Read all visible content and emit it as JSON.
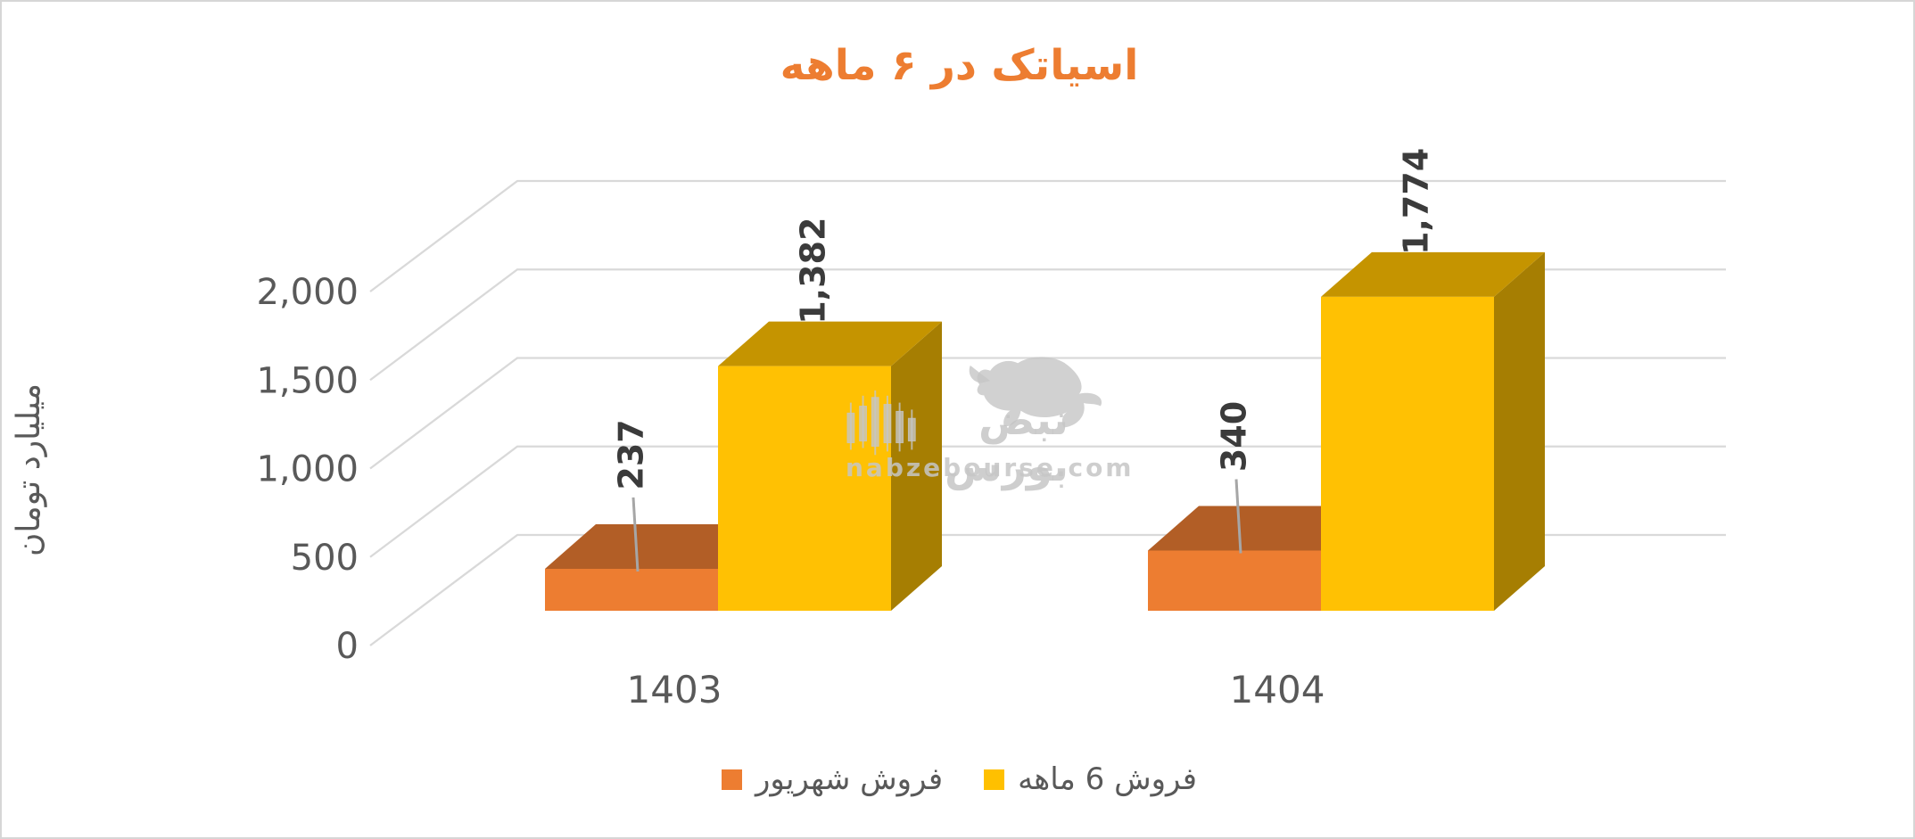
{
  "title": {
    "text": "اسیاتک در ۶ ماهه",
    "color": "#ED7D31"
  },
  "watermark": {
    "brand_fa": "نبض بورس",
    "site": "nabzebourse.com"
  },
  "legend": [
    {
      "label": "فروش شهریور",
      "color": "#ED7D31"
    },
    {
      "label": "فروش 6 ماهه",
      "color": "#FFC000"
    }
  ],
  "chart_data": {
    "type": "bar",
    "projection": "3d",
    "title": "اسیاتک در ۶ ماهه",
    "categories": [
      "1403",
      "1404"
    ],
    "series": [
      {
        "name": "فروش شهریور",
        "values": [
          237,
          340
        ],
        "data_labels": [
          "237",
          "340"
        ],
        "color": "#ED7D31",
        "top_color": "#B25E26",
        "side_color": "#9D4F1E"
      },
      {
        "name": "فروش 6 ماهه",
        "values": [
          1382,
          1774
        ],
        "data_labels": [
          "1,382",
          "1,774"
        ],
        "color": "#FFC103",
        "top_color": "#C59400",
        "side_color": "#A67E02"
      }
    ],
    "ylabel": "میلیارد تومان",
    "yticks": [
      0,
      500,
      1000,
      1500,
      2000
    ],
    "ytick_labels": [
      "0",
      "500",
      "1,000",
      "1,500",
      "2,000"
    ],
    "ylim": [
      0,
      2350
    ],
    "grid": true,
    "legend_position": "bottom",
    "colors": {
      "gridline": "#D9D9D9",
      "axis_text": "#595959",
      "data_label_text": "#3B3B3B",
      "leader_line": "#A6A6A6"
    }
  }
}
